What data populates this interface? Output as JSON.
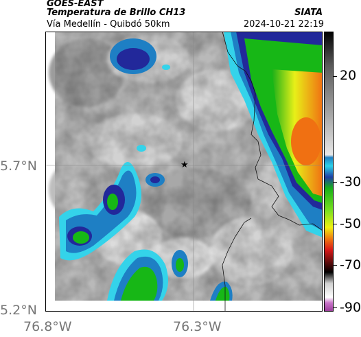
{
  "header": {
    "satellite": "GOES-EAST",
    "product": "Temperatura de Brillo CH13",
    "route": "Vía Medellín - Quibdó 50km",
    "brand": "SIATA",
    "timestamp": "2024-10-21 22:19"
  },
  "axes": {
    "lat_labels": [
      "5.7°N",
      "5.2°N"
    ],
    "lon_labels": [
      "76.8°W",
      "76.3°W"
    ]
  },
  "colorbar": {
    "ticks": [
      "20",
      "-30",
      "-50",
      "-70",
      "-90"
    ],
    "colors": [
      "#000000",
      "#4d4d4d",
      "#9a9a9a",
      "#d8d8d8",
      "#1e7fc4",
      "#1f3fa6",
      "#2ad2e8",
      "#18b018",
      "#7be020",
      "#f0f010",
      "#f07a10",
      "#d81818",
      "#6b0d0d",
      "#2a2a2a",
      "#d0d0d0",
      "#c874c8"
    ]
  },
  "map": {
    "station_marker": "star-icon",
    "colors": {
      "cloud_dark": "#8f8f8f",
      "cloud_light": "#dcdcdc",
      "cold_blue": "#1e7fc4",
      "deep_blue": "#22289a",
      "cyan": "#34d3ea",
      "green": "#17b716",
      "yellow": "#e8f018",
      "orange": "#f07012"
    }
  }
}
